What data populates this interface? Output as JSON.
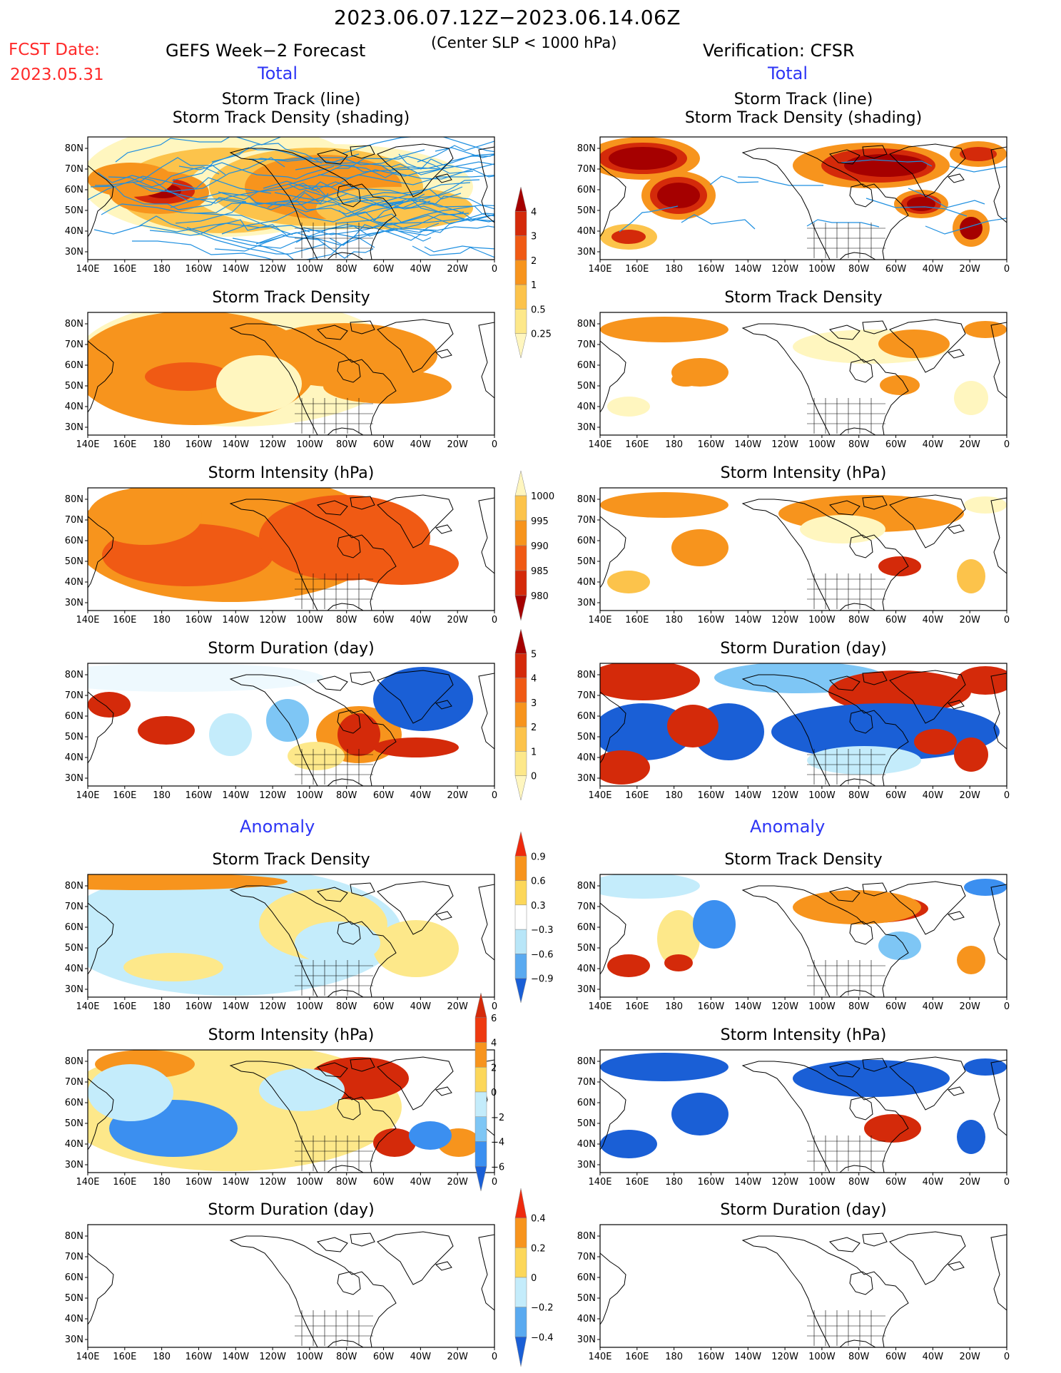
{
  "header": {
    "date_range": "2023.06.07.12Z−2023.06.14.06Z",
    "criterion": "(Center SLP < 1000 hPa)",
    "fcst_label": "FCST Date:",
    "fcst_date": "2023.05.31",
    "left_title": "GEFS Week−2 Forecast",
    "right_title": "Verification: CFSR",
    "left_section": "Total",
    "right_section": "Total"
  },
  "anomaly_labels": {
    "left": "Anomaly",
    "right": "Anomaly"
  },
  "axes": {
    "lon_ticks": [
      "140E",
      "160E",
      "180",
      "160W",
      "140W",
      "120W",
      "100W",
      "80W",
      "60W",
      "40W",
      "20W",
      "0"
    ],
    "lat_ticks": [
      "80N",
      "70N",
      "60N",
      "50N",
      "40N",
      "30N"
    ]
  },
  "panels": [
    {
      "title_lines": [
        "Storm Track (line)",
        "Storm Track Density (shading)"
      ]
    },
    {
      "title_lines": [
        "Storm Track (line)",
        "Storm Track Density (shading)"
      ]
    },
    {
      "title_lines": [
        "Storm Track Density"
      ]
    },
    {
      "title_lines": [
        "Storm Track Density"
      ]
    },
    {
      "title_lines": [
        "Storm Intensity (hPa)"
      ]
    },
    {
      "title_lines": [
        "Storm Intensity (hPa)"
      ]
    },
    {
      "title_lines": [
        "Storm Duration (day)"
      ]
    },
    {
      "title_lines": [
        "Storm Duration (day)"
      ]
    },
    {
      "title_lines": [
        "Storm Track Density"
      ]
    },
    {
      "title_lines": [
        "Storm Track Density"
      ]
    },
    {
      "title_lines": [
        "Storm Intensity (hPa)"
      ]
    },
    {
      "title_lines": [
        "Storm Intensity (hPa)"
      ]
    },
    {
      "title_lines": [
        "Storm Duration (day)"
      ]
    },
    {
      "title_lines": [
        "Storm Duration (day)"
      ]
    }
  ],
  "colorbars": [
    {
      "id": "density_total",
      "labels": [
        "4",
        "3",
        "2",
        "1",
        "0.5",
        "0.25"
      ],
      "colors": [
        "#a50000",
        "#d42a0a",
        "#f05a14",
        "#f7941d",
        "#fcc34b",
        "#fde88a",
        "#fff6bf"
      ]
    },
    {
      "id": "intensity_total",
      "labels": [
        "1000",
        "995",
        "990",
        "985",
        "980"
      ],
      "colors": [
        "#fff6bf",
        "#fcc34b",
        "#f7941d",
        "#f05a14",
        "#d42a0a",
        "#a50000"
      ]
    },
    {
      "id": "duration_total",
      "labels": [
        "5",
        "4",
        "3",
        "2",
        "1",
        "0"
      ],
      "colors": [
        "#a50000",
        "#d42a0a",
        "#f05a14",
        "#f7941d",
        "#fcc34b",
        "#fde88a",
        "#fff6bf"
      ]
    },
    {
      "id": "density_anom",
      "labels": [
        "0.9",
        "0.6",
        "0.3",
        "−0.3",
        "−0.6",
        "−0.9"
      ],
      "colors": [
        "#ee2a0e",
        "#f7941d",
        "#fcd75a",
        "#ffffff",
        "#b8e6f8",
        "#5aaaf0",
        "#1a5fd6"
      ]
    },
    {
      "id": "intensity_anom",
      "labels": [
        "6",
        "4",
        "2",
        "0",
        "−2",
        "−4",
        "−6"
      ],
      "colors": [
        "#d42a0a",
        "#ee3a10",
        "#f7941d",
        "#fcd75a",
        "#c4ecfb",
        "#7ec6f5",
        "#3b8ff0",
        "#1a5fd6"
      ]
    },
    {
      "id": "duration_anom",
      "labels": [
        "0.4",
        "0.2",
        "0",
        "−0.2",
        "−0.4"
      ],
      "colors": [
        "#ee2a0e",
        "#f7941d",
        "#fcd75a",
        "#c4ecfb",
        "#5aaaf0",
        "#1a5fd6"
      ]
    }
  ],
  "colors": {
    "red_text": "#ff2a2a",
    "blue_text": "#2d35f5",
    "track_line": "#1e8fe0"
  }
}
